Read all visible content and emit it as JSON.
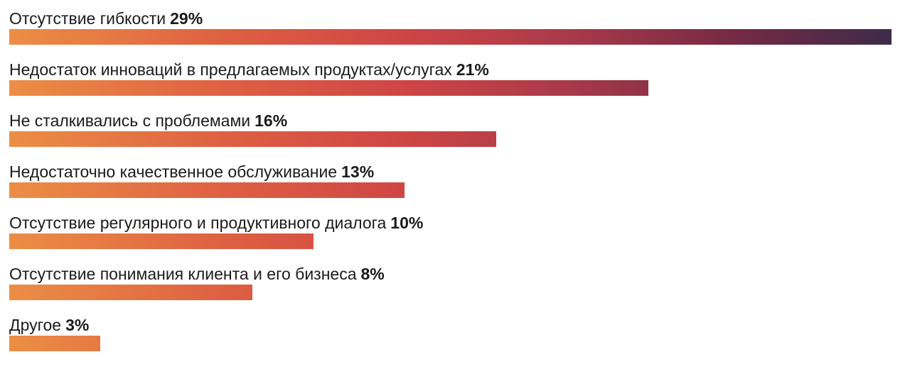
{
  "chart_data": {
    "type": "bar",
    "orientation": "horizontal",
    "categories": [
      "Отсутствие гибкости",
      "Недостаток инноваций в предлагаемых продуктах/услугах",
      "Не сталкивались с проблемами",
      "Недостаточно качественное обслуживание",
      "Отсутствие регулярного и продуктивного диалога",
      "Отсутствие понимания клиента и его бизнеса",
      "Другое"
    ],
    "values": [
      29,
      21,
      16,
      13,
      10,
      8,
      3
    ],
    "value_labels": [
      "29%",
      "21%",
      "16%",
      "13%",
      "10%",
      "8%",
      "3%"
    ],
    "unit": "%",
    "xlim": [
      0,
      29
    ],
    "grid": false,
    "legend": "none",
    "title": "",
    "xlabel": "",
    "ylabel": ""
  },
  "colors": {
    "gradient_start": "#ec8e45",
    "gradient_mid": "#cf4545",
    "gradient_end": "#3d2b4a",
    "text": "#1c1a1a"
  }
}
